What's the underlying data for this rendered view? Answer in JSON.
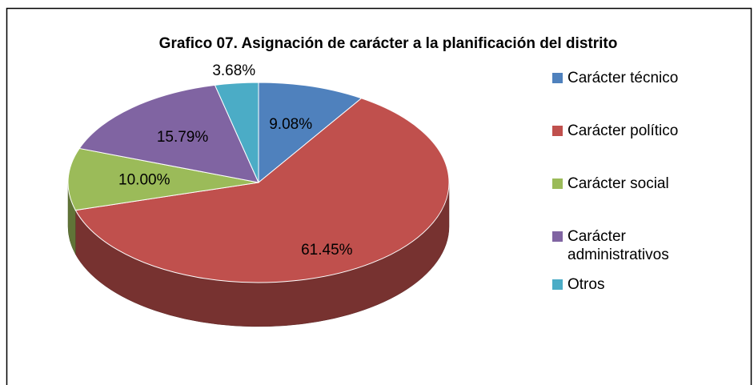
{
  "chart_data": {
    "type": "pie3d",
    "title": "Grafico 07. Asignación de carácter a la planificación del distrito",
    "categories": [
      "Carácter técnico",
      "Carácter político",
      "Carácter social",
      "Carácter administrativos",
      "Otros"
    ],
    "values": [
      9.08,
      61.45,
      10.0,
      15.79,
      3.68
    ],
    "value_labels": [
      "9.08%",
      "61.45%",
      "10.00%",
      "15.79%",
      "3.68%"
    ],
    "colors": [
      "#4f81bd",
      "#c0504d",
      "#9bbb59",
      "#8064a2",
      "#4bacc6"
    ],
    "legend": "right"
  }
}
